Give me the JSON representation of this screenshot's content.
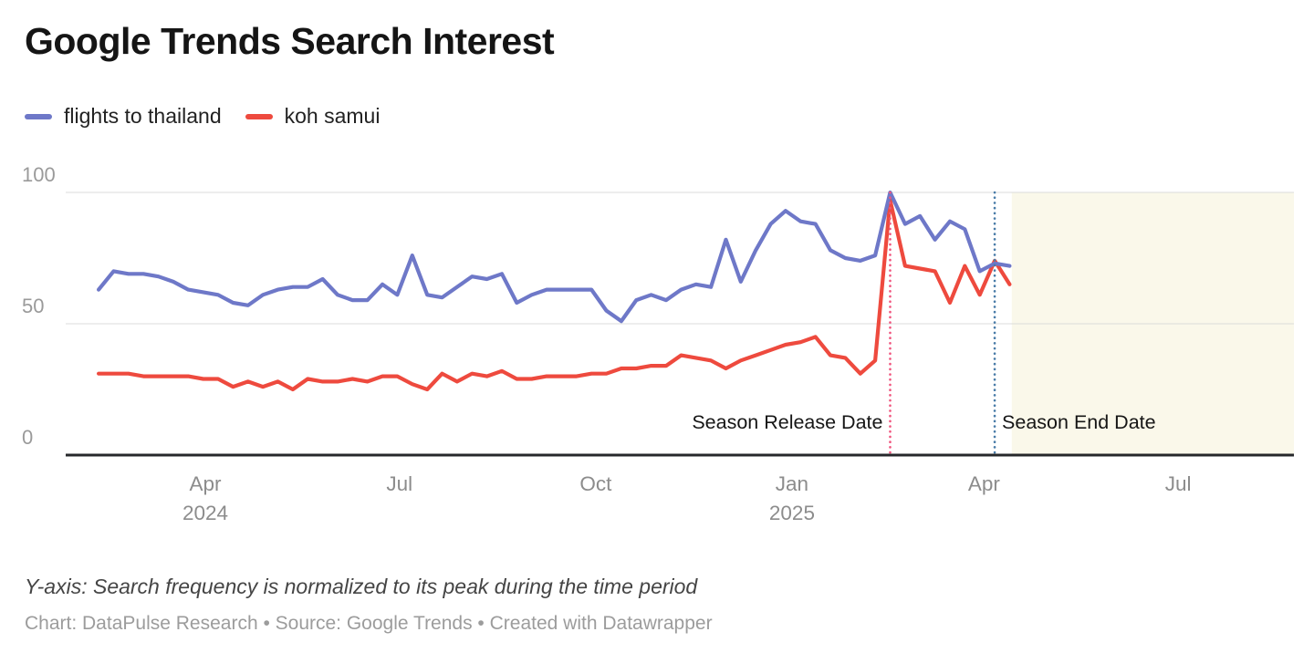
{
  "header": {
    "title": "Google Trends Search Interest"
  },
  "legend": {
    "items": [
      {
        "label": "flights to thailand",
        "color": "#6E78C8"
      },
      {
        "label": "koh samui",
        "color": "#EE4A3E"
      }
    ]
  },
  "chart_data": {
    "type": "line",
    "title": "Google Trends Search Interest",
    "x_start_date": "2024-02-11",
    "x_step_days": 7,
    "ylim": [
      0,
      100
    ],
    "y_ticks": [
      100,
      50,
      0
    ],
    "grid": "horizontal",
    "legend_position": "top",
    "x_ticks": [
      {
        "label": "Apr",
        "sublabel": "2024",
        "date": "2024-04-01"
      },
      {
        "label": "Jul",
        "sublabel": "",
        "date": "2024-07-01"
      },
      {
        "label": "Oct",
        "sublabel": "",
        "date": "2024-10-01"
      },
      {
        "label": "Jan",
        "sublabel": "2025",
        "date": "2025-01-01"
      },
      {
        "label": "Apr",
        "sublabel": "",
        "date": "2025-04-01"
      },
      {
        "label": "Jul",
        "sublabel": "",
        "date": "2025-07-01"
      }
    ],
    "series": [
      {
        "name": "koh samui",
        "color": "#EE4A3E",
        "values": [
          31,
          31,
          31,
          30,
          30,
          30,
          30,
          29,
          29,
          26,
          28,
          26,
          28,
          25,
          29,
          28,
          28,
          29,
          28,
          30,
          30,
          27,
          25,
          31,
          28,
          31,
          30,
          32,
          29,
          29,
          30,
          30,
          30,
          31,
          31,
          33,
          33,
          34,
          34,
          38,
          37,
          36,
          33,
          36,
          38,
          40,
          42,
          43,
          45,
          38,
          37,
          31,
          36,
          97,
          72,
          71,
          70,
          58,
          72,
          61,
          74,
          65
        ]
      },
      {
        "name": "flights to thailand",
        "color": "#6E78C8",
        "values": [
          63,
          70,
          69,
          69,
          68,
          66,
          63,
          62,
          61,
          58,
          57,
          61,
          63,
          64,
          64,
          67,
          61,
          59,
          59,
          65,
          61,
          76,
          61,
          60,
          64,
          68,
          67,
          69,
          58,
          61,
          63,
          63,
          63,
          63,
          55,
          51,
          59,
          61,
          59,
          63,
          65,
          64,
          82,
          66,
          78,
          88,
          93,
          89,
          88,
          78,
          75,
          74,
          76,
          100,
          88,
          91,
          82,
          89,
          86,
          70,
          73,
          72
        ]
      }
    ],
    "annotations": [
      {
        "label": "Season Release Date",
        "date": "2025-02-16",
        "color": "#F0557E",
        "align": "end"
      },
      {
        "label": "Season End Date",
        "date": "2025-04-06",
        "color": "#4A7CA8",
        "align": "start"
      }
    ],
    "future_region": {
      "from_date": "2025-04-14",
      "color": "#FAF8EA"
    },
    "colors": {
      "gridline": "#DBDBDB",
      "axis_line": "#26282B",
      "y_tick_label": "#9A9A9A",
      "x_tick_label": "#8C8C8C",
      "annotation_text": "#161616"
    }
  },
  "footer": {
    "note": "Y-axis: Search frequency is normalized to its peak during the time period",
    "credit": "Chart: DataPulse Research • Source: Google Trends • Created with Datawrapper"
  }
}
